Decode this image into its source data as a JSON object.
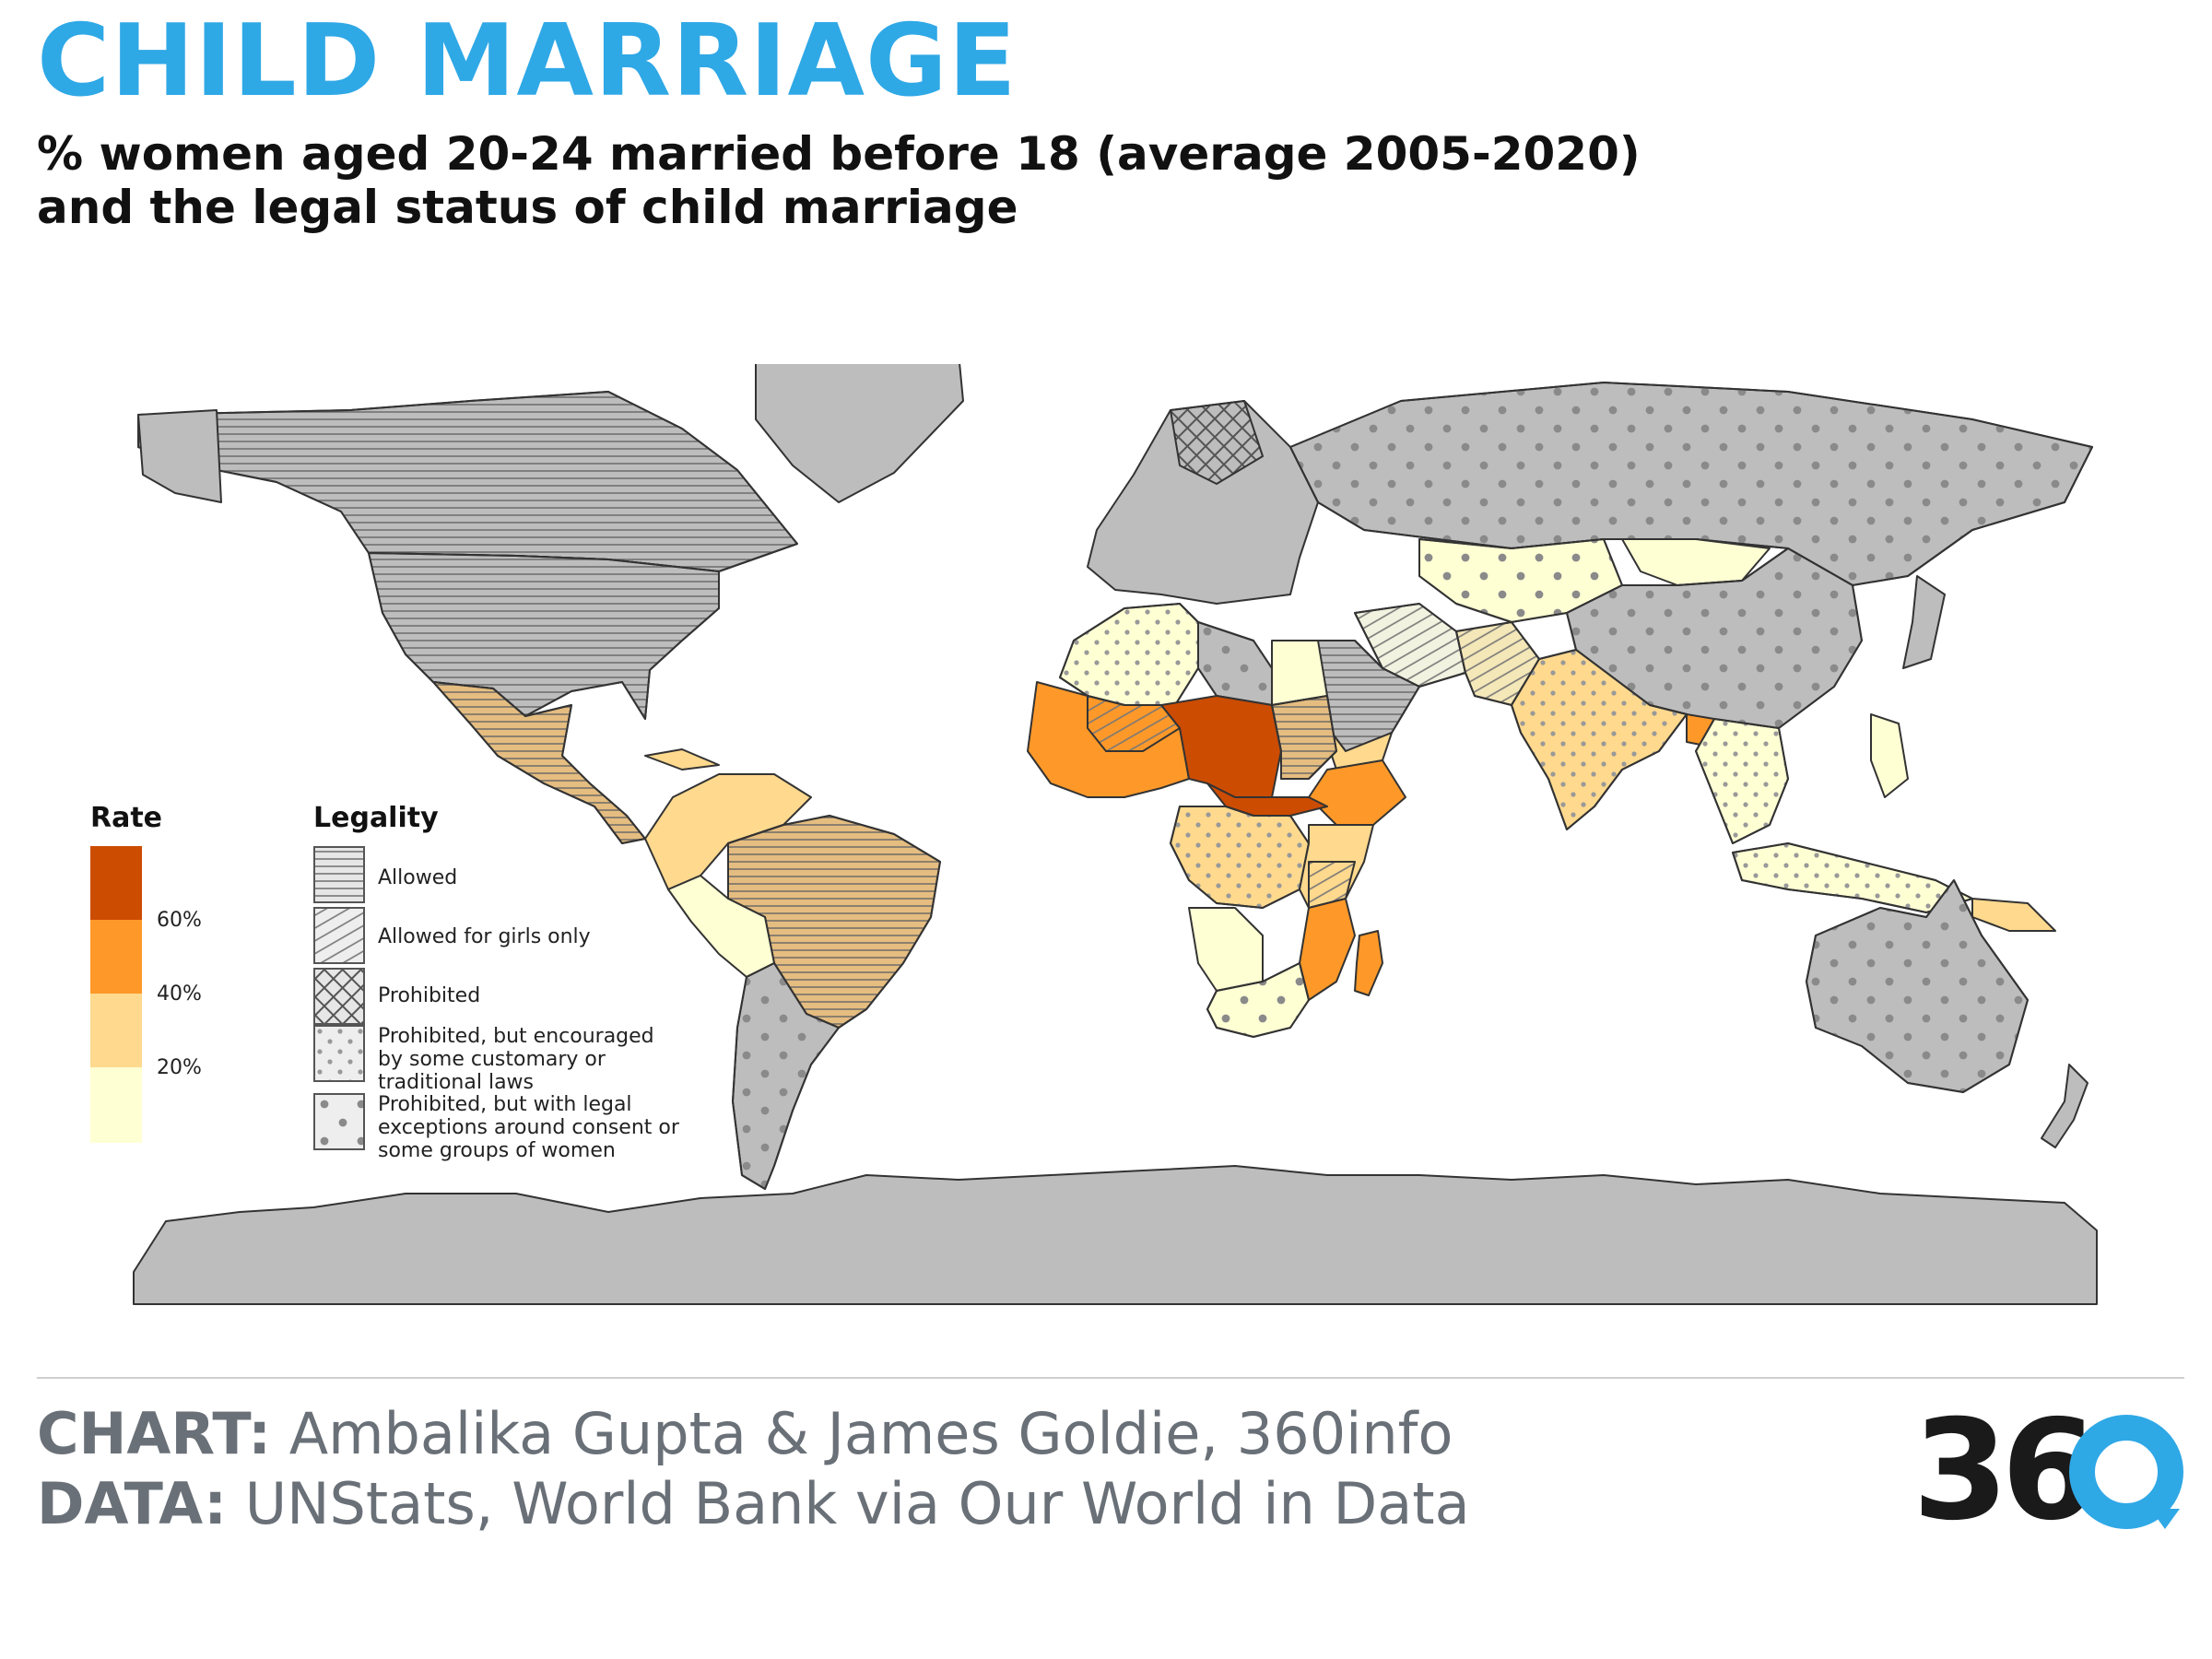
{
  "header": {
    "title": "CHILD MARRIAGE",
    "subtitle_line1": "% women aged 20-24 married before 18 (average 2005-2020)",
    "subtitle_line2": "and the legal status of child marriage"
  },
  "rate_legend": {
    "title": "Rate",
    "ticks": [
      "60%",
      "40%",
      "20%"
    ],
    "colors": [
      "#cc4c02",
      "#fe9929",
      "#fed98e",
      "#ffffd4"
    ]
  },
  "legality_legend": {
    "title": "Legality",
    "items": [
      {
        "label": "Allowed",
        "pattern": "horizontal-lines"
      },
      {
        "label": "Allowed for girls only",
        "pattern": "diagonal-lines"
      },
      {
        "label": "Prohibited",
        "pattern": "crosshatch"
      },
      {
        "label": "Prohibited, but encouraged by some customary or traditional laws",
        "pattern": "small-dots"
      },
      {
        "label": "Prohibited, but with legal exceptions around consent or some groups of women",
        "pattern": "large-dots"
      }
    ]
  },
  "map": {
    "no_data_color": "#bdbdbd",
    "border_color": "#333333"
  },
  "footer": {
    "chart_label": "CHART:",
    "chart_text": "Ambalika Gupta & James Goldie, 360info",
    "data_label": "DATA:",
    "data_text": "UNStats, World Bank via Our World in Data"
  },
  "logo": {
    "text": "36",
    "text_color": "#1a1a1a",
    "accent_color": "#2fa8e6"
  }
}
